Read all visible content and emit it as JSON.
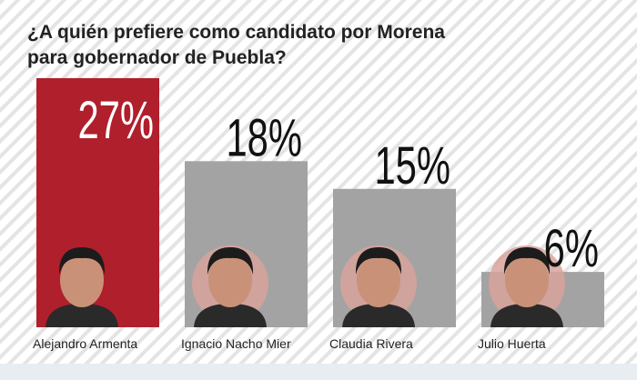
{
  "chart_data": {
    "type": "bar",
    "title": "¿A quién prefiere como candidato por Morena para gobernador de Puebla?",
    "categories": [
      "Alejandro Armenta",
      "Ignacio Nacho Mier",
      "Claudia Rivera",
      "Julio Huerta"
    ],
    "values": [
      27,
      18,
      15,
      6
    ],
    "value_labels": [
      "27%",
      "18%",
      "15%",
      "6%"
    ],
    "colors": [
      "#b01f2c",
      "#a3a3a3",
      "#a3a3a3",
      "#a3a3a3"
    ]
  }
}
